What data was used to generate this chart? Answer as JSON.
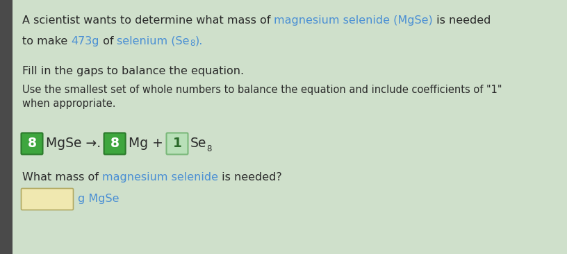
{
  "background_color": "#cfe0cb",
  "left_bar_color": "#4a4a4a",
  "line1_parts": [
    {
      "text": "A scientist wants to determine what mass of ",
      "color": "#2a2a2a"
    },
    {
      "text": "magnesium selenide (MgSe)",
      "color": "#4a8fd4"
    },
    {
      "text": " is needed",
      "color": "#2a2a2a"
    }
  ],
  "line2_parts": [
    {
      "text": "to make ",
      "color": "#2a2a2a"
    },
    {
      "text": "473g",
      "color": "#4a8fd4"
    },
    {
      "text": " of ",
      "color": "#2a2a2a"
    },
    {
      "text": "selenium (Se",
      "color": "#4a8fd4"
    },
    {
      "text": "8",
      "color": "#4a8fd4",
      "sub": true
    },
    {
      "text": ").",
      "color": "#4a8fd4"
    }
  ],
  "line3": "Fill in the gaps to balance the equation.",
  "line4": "Use the smallest set of whole numbers to balance the equation and include coefficients of \"1\"",
  "line5": "when appropriate.",
  "green_box_color": "#3ea63e",
  "green_box_edge": "#2a7a2a",
  "coeff1": "8",
  "text_mid": "MgSe →.",
  "coeff2": "8",
  "text_after2": "Mg +",
  "coeff3": "1",
  "se_text": "Se",
  "se_sub": "8",
  "question_parts": [
    {
      "text": "What mass of ",
      "color": "#2a2a2a"
    },
    {
      "text": "magnesium selenide",
      "color": "#4a8fd4"
    },
    {
      "text": " is needed?",
      "color": "#2a2a2a"
    }
  ],
  "answer_box_color": "#f0e8b0",
  "answer_box_edge": "#b0a860",
  "answer_label_parts": [
    {
      "text": "g MgSe",
      "color": "#4a8fd4"
    }
  ],
  "fs_main": 11.5,
  "fs_small": 10.5,
  "fs_eq": 13.5,
  "fs_sub": 8.5
}
